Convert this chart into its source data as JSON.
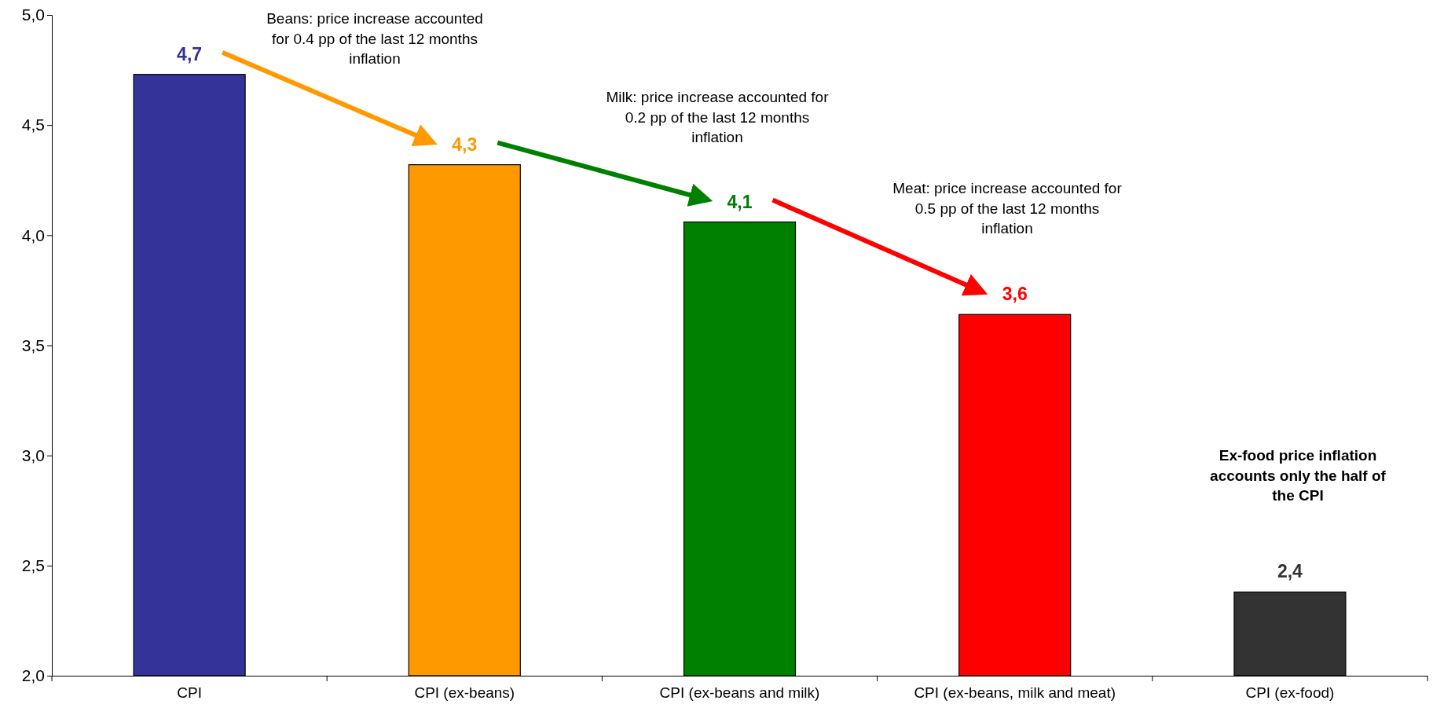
{
  "chart_data": {
    "type": "bar",
    "categories": [
      "CPI",
      "CPI (ex-beans)",
      "CPI (ex-beans and milk)",
      "CPI (ex-beans, milk and meat)",
      "CPI (ex-food)"
    ],
    "values": [
      4.73,
      4.32,
      4.06,
      3.64,
      2.38
    ],
    "colors": [
      "#333399",
      "#ff9900",
      "#008000",
      "#ff0000",
      "#333333"
    ],
    "value_labels": [
      "4,7",
      "4,3",
      "4,1",
      "3,6",
      "2,4"
    ],
    "ylim": [
      2,
      5
    ],
    "yticks": [
      {
        "value": 2,
        "label": "2,0"
      },
      {
        "value": 2.5,
        "label": "2,5"
      },
      {
        "value": 3,
        "label": "3,0"
      },
      {
        "value": 3.5,
        "label": "3,5"
      },
      {
        "value": 4,
        "label": "4,0"
      },
      {
        "value": 4.5,
        "label": "4,5"
      },
      {
        "value": 5,
        "label": "5,0"
      }
    ],
    "grid": false,
    "annotations": [
      "Beans: price increase accounted for 0.4 pp of the last 12 months inflation",
      "Milk: price increase accounted for 0.2 pp of the last 12 months inflation",
      "Meat: price increase accounted for 0.5 pp of the last 12 months inflation",
      "Ex-food price inflation accounts only the half of the CPI"
    ]
  }
}
